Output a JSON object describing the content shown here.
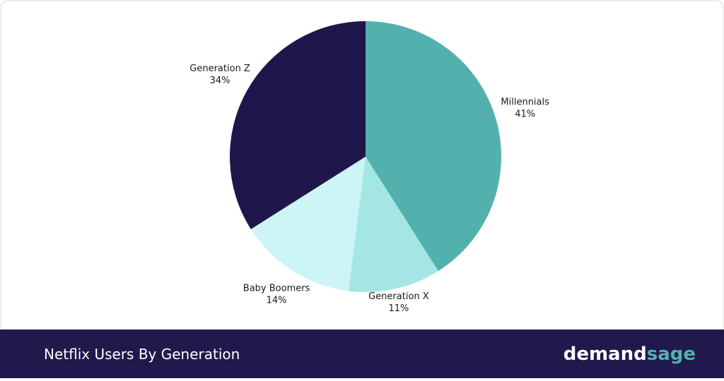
{
  "chart_data": {
    "type": "pie",
    "title": "Netflix Users By Generation",
    "categories": [
      "Millennials",
      "Generation X",
      "Baby Boomers",
      "Generation Z"
    ],
    "values": [
      41,
      11,
      14,
      34
    ],
    "value_labels": [
      "41%",
      "11%",
      "14%",
      "34%"
    ],
    "colors": [
      "#52b1ad",
      "#a3e6e4",
      "#cdf5f5",
      "#1f174b"
    ]
  },
  "brand": {
    "first": "demand",
    "second": "sage"
  }
}
